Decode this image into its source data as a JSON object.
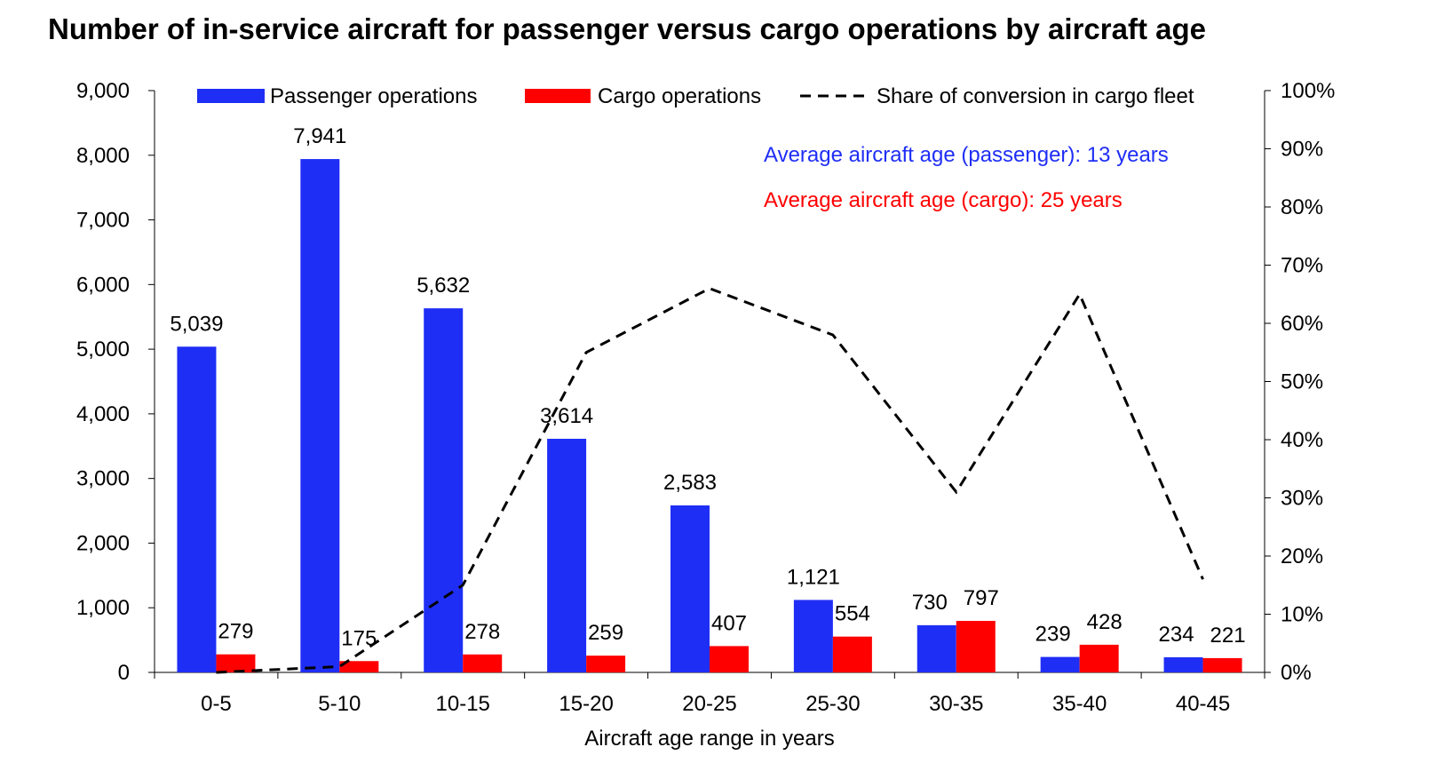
{
  "chart_data": {
    "type": "bar",
    "title": "Number of in-service aircraft for passenger versus cargo operations by aircraft age",
    "xlabel": "Aircraft age range in years",
    "ylabel": "",
    "y2label": "",
    "categories": [
      "0-5",
      "5-10",
      "10-15",
      "15-20",
      "20-25",
      "25-30",
      "30-35",
      "35-40",
      "40-45"
    ],
    "series": [
      {
        "name": "Passenger operations",
        "type": "bar",
        "axis": "left",
        "color": "#1f2ef5",
        "values": [
          5039,
          7941,
          5632,
          3614,
          2583,
          1121,
          730,
          239,
          234
        ],
        "labels": [
          "5,039",
          "7,941",
          "5,632",
          "3,614",
          "2,583",
          "1,121",
          "730",
          "239",
          "234"
        ]
      },
      {
        "name": "Cargo operations",
        "type": "bar",
        "axis": "left",
        "color": "#ff0000",
        "values": [
          279,
          175,
          278,
          259,
          407,
          554,
          797,
          428,
          221
        ],
        "labels": [
          "279",
          "175",
          "278",
          "259",
          "407",
          "554",
          "797",
          "428",
          "221"
        ]
      },
      {
        "name": "Share of conversion in cargo fleet",
        "type": "line",
        "axis": "right",
        "color": "#000000",
        "dash": "dashed",
        "values": [
          0,
          1,
          15,
          55,
          66,
          58,
          31,
          65,
          16
        ]
      }
    ],
    "ylim": [
      0,
      9000
    ],
    "yticks": [
      0,
      1000,
      2000,
      3000,
      4000,
      5000,
      6000,
      7000,
      8000,
      9000
    ],
    "yticklabels": [
      "0",
      "1,000",
      "2,000",
      "3,000",
      "4,000",
      "5,000",
      "6,000",
      "7,000",
      "8,000",
      "9,000"
    ],
    "y2lim": [
      0,
      100
    ],
    "y2ticks": [
      0,
      10,
      20,
      30,
      40,
      50,
      60,
      70,
      80,
      90,
      100
    ],
    "y2ticklabels": [
      "0%",
      "10%",
      "20%",
      "30%",
      "40%",
      "50%",
      "60%",
      "70%",
      "80%",
      "90%",
      "100%"
    ],
    "legend_position": "top",
    "annotations": [
      {
        "text": "Average aircraft age (passenger): 13 years",
        "color": "#1f2ef5"
      },
      {
        "text": "Average aircraft age (cargo): 25 years",
        "color": "#ff0000"
      }
    ]
  }
}
